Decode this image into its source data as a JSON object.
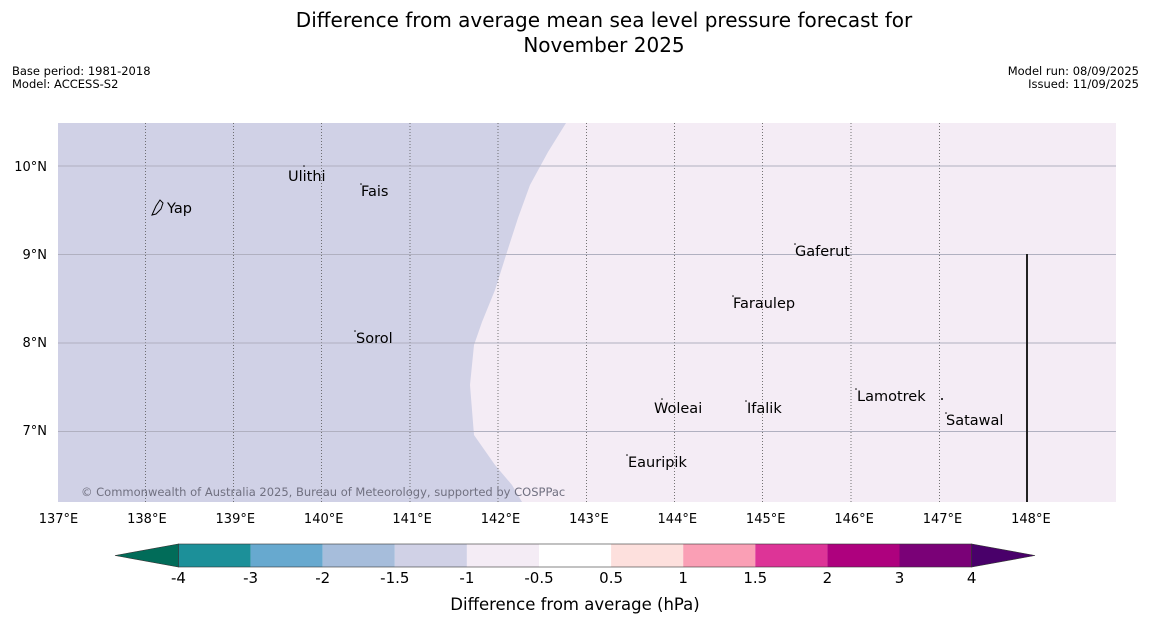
{
  "title_line1": "Difference from average mean sea level pressure forecast for",
  "title_line2": "November 2025",
  "meta_left": {
    "base_period": "Base period: 1981-2018",
    "model": "Model: ACCESS-S2"
  },
  "meta_right": {
    "model_run": "Model run: 08/09/2025",
    "issued": "Issued: 11/09/2025"
  },
  "map": {
    "lon_ticks": [
      "137°E",
      "138°E",
      "139°E",
      "140°E",
      "141°E",
      "142°E",
      "143°E",
      "144°E",
      "145°E",
      "146°E",
      "147°E",
      "148°E"
    ],
    "lat_ticks": [
      "10°N",
      "9°N",
      "8°N",
      "7°N"
    ],
    "places": [
      "Yap",
      "Ulithi",
      "Fais",
      "Gaferut",
      "Faraulep",
      "Sorol",
      "Lamotrek",
      "Woleai",
      "Ifalik",
      "Satawal",
      "Eauripik"
    ],
    "copyright": "© Commonwealth of Australia 2025, Bureau of Meteorology, supported by COSPPac",
    "region_colors": {
      "minus1_to_minus1_5": "#d0d1e6",
      "minus0_5_to_minus1": "#f4ecf5"
    }
  },
  "colorbar": {
    "bins": [
      {
        "label": "< -4",
        "color": "#016c59"
      },
      {
        "label": "-4 to -3",
        "color": "#1c9099"
      },
      {
        "label": "-3 to -2",
        "color": "#67a9cf"
      },
      {
        "label": "-2 to -1.5",
        "color": "#a6bddb"
      },
      {
        "label": "-1.5 to -1",
        "color": "#d0d1e6"
      },
      {
        "label": "-1 to -0.5",
        "color": "#f4ecf5"
      },
      {
        "label": "-0.5 to 0.5",
        "color": "#ffffff"
      },
      {
        "label": "0.5 to 1",
        "color": "#fde0dd"
      },
      {
        "label": "1 to 1.5",
        "color": "#fa9fb5"
      },
      {
        "label": "1.5 to 2",
        "color": "#dd3497"
      },
      {
        "label": "2 to 3",
        "color": "#ae017e"
      },
      {
        "label": "3 to 4",
        "color": "#7a0177"
      },
      {
        "label": "> 4",
        "color": "#49006a"
      }
    ],
    "tick_labels": [
      "-4",
      "-3",
      "-2",
      "-1.5",
      "-1",
      "-0.5",
      "0.5",
      "1",
      "1.5",
      "2",
      "3",
      "4"
    ],
    "label": "Difference from average (hPa)"
  }
}
